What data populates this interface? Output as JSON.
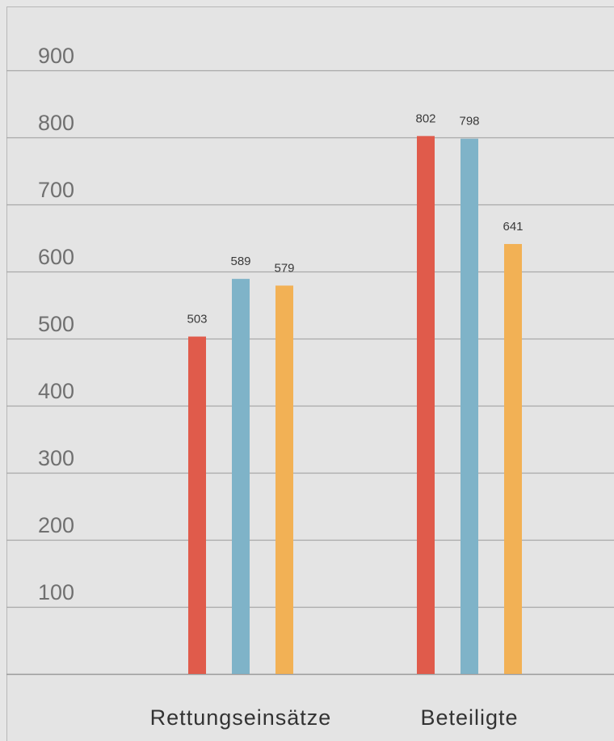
{
  "chart_data": {
    "type": "bar",
    "categories": [
      "Rettungseinsätze",
      "Beteiligte"
    ],
    "series": [
      {
        "values": [
          503,
          802
        ],
        "color": "#e05b4b"
      },
      {
        "values": [
          589,
          798
        ],
        "color": "#7fb3c8"
      },
      {
        "values": [
          579,
          641
        ],
        "color": "#f2b155"
      }
    ],
    "ylim": [
      0,
      900
    ],
    "yticks": [
      100,
      200,
      300,
      400,
      500,
      600,
      700,
      800,
      900
    ],
    "grid": true,
    "legend": "none",
    "title": "",
    "xlabel": "",
    "ylabel": ""
  }
}
